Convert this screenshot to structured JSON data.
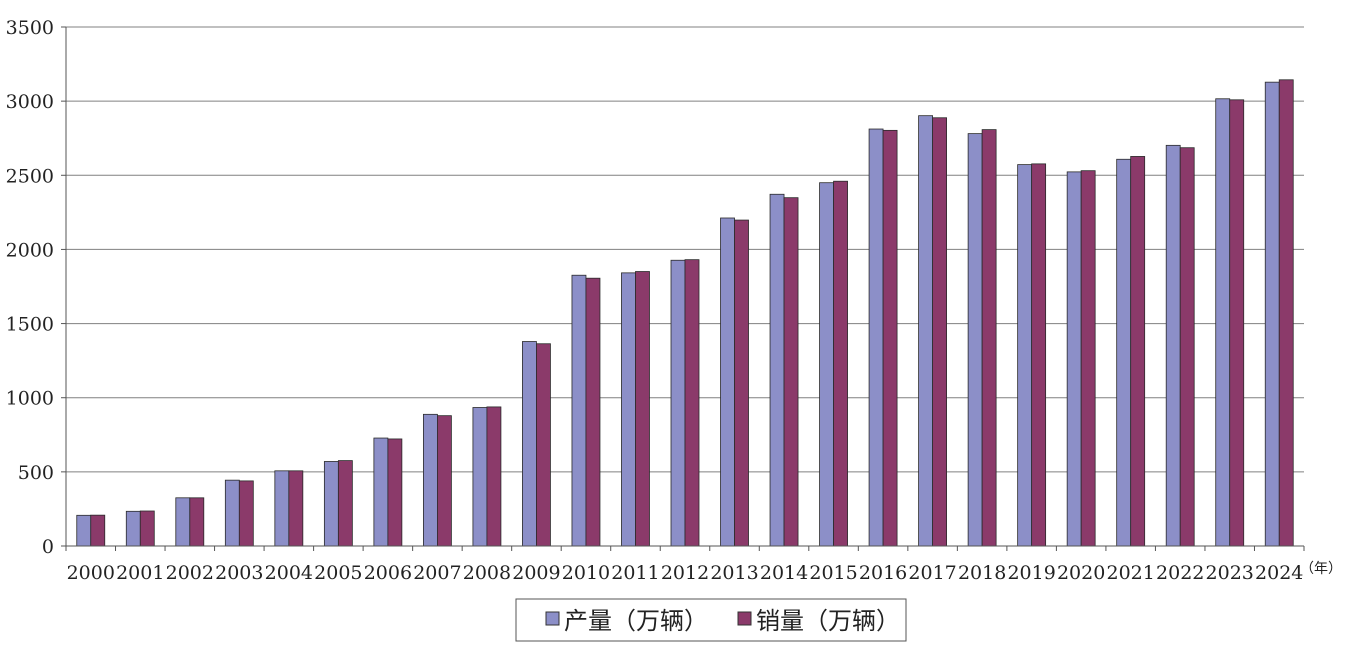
{
  "chart_data": {
    "type": "bar",
    "title": "",
    "xlabel": "",
    "ylabel": "",
    "x_unit": "（年）",
    "ylim": [
      0,
      3500
    ],
    "yticks": [
      0,
      500,
      1000,
      1500,
      2000,
      2500,
      3000,
      3500
    ],
    "grid": true,
    "legend_position": "bottom-center",
    "categories": [
      "2000",
      "2001",
      "2002",
      "2003",
      "2004",
      "2005",
      "2006",
      "2007",
      "2008",
      "2009",
      "2010",
      "2011",
      "2012",
      "2013",
      "2014",
      "2015",
      "2016",
      "2017",
      "2018",
      "2019",
      "2020",
      "2021",
      "2022",
      "2023",
      "2024"
    ],
    "series": [
      {
        "name": "产量（万辆）",
        "color": "#8c8fc8",
        "values": [
          207,
          234,
          325,
          444,
          507,
          570,
          728,
          888,
          934,
          1379,
          1826,
          1842,
          1927,
          2212,
          2372,
          2450,
          2812,
          2902,
          2781,
          2572,
          2523,
          2608,
          2702,
          3016,
          3128
        ]
      },
      {
        "name": "销量（万辆）",
        "color": "#8b3a6a",
        "values": [
          208,
          236,
          325,
          439,
          507,
          576,
          722,
          879,
          938,
          1364,
          1806,
          1851,
          1931,
          2198,
          2349,
          2460,
          2803,
          2888,
          2808,
          2577,
          2531,
          2627,
          2686,
          3009,
          3144
        ]
      }
    ]
  }
}
